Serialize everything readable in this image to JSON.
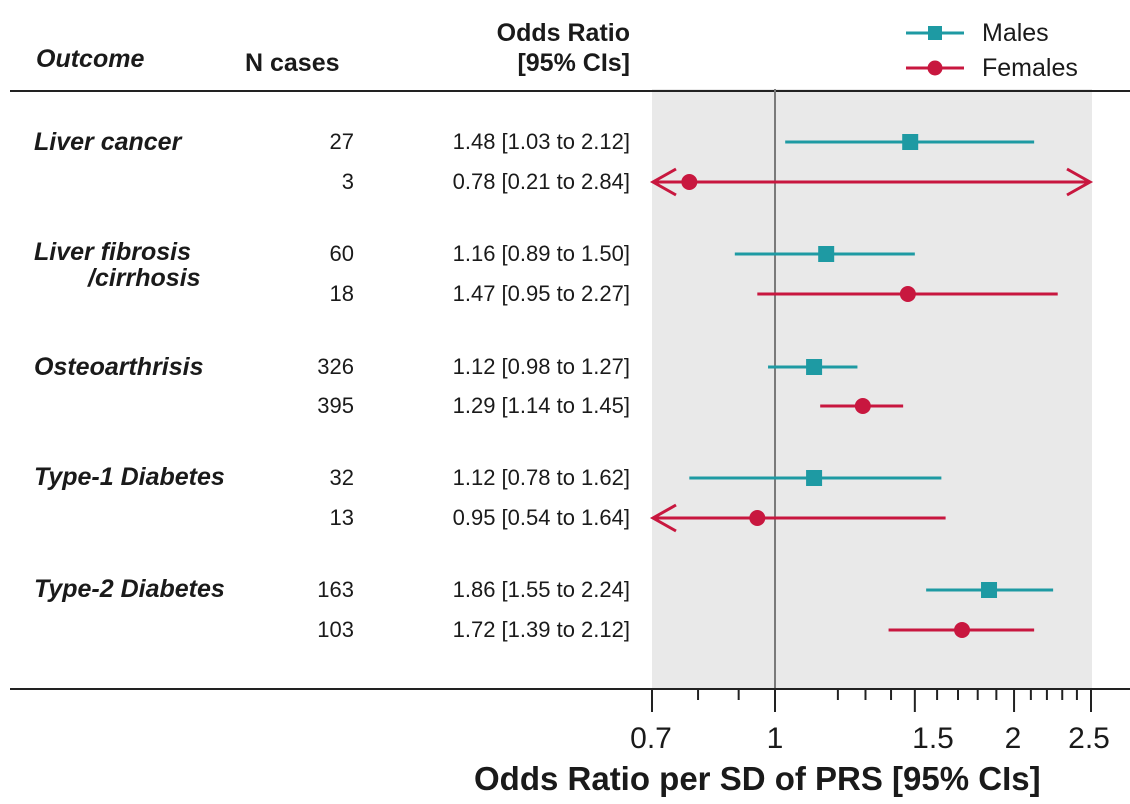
{
  "chart_data": {
    "type": "forest",
    "xlabel": "Odds Ratio per SD of PRS [95% CIs]",
    "x_scale": "log",
    "xlim": [
      0.7,
      2.5
    ],
    "x_ticks": [
      0.7,
      1,
      1.5,
      2,
      2.5
    ],
    "x_tick_labels": [
      "0.7",
      "1",
      "1.5",
      "2",
      "2.5"
    ],
    "reference_line": 1,
    "columns": {
      "outcome": "Outcome",
      "n_cases": "N cases",
      "or_line1": "Odds Ratio",
      "or_line2": "[95% CIs]"
    },
    "legend": [
      {
        "name": "Males",
        "color": "#1e9aa3",
        "marker": "square"
      },
      {
        "name": "Females",
        "color": "#c8173f",
        "marker": "circle"
      }
    ],
    "outcomes": [
      {
        "label": [
          "Liver cancer"
        ],
        "rows": [
          {
            "sex": "Males",
            "n": "27",
            "text": "1.48 [1.03 to 2.12]",
            "or": 1.48,
            "lo": 1.03,
            "hi": 2.12
          },
          {
            "sex": "Females",
            "n": "3",
            "text": "0.78 [0.21 to 2.84]",
            "or": 0.78,
            "lo": 0.21,
            "hi": 2.84
          }
        ]
      },
      {
        "label": [
          "Liver fibrosis",
          "/cirrhosis"
        ],
        "rows": [
          {
            "sex": "Males",
            "n": "60",
            "text": "1.16 [0.89 to 1.50]",
            "or": 1.16,
            "lo": 0.89,
            "hi": 1.5
          },
          {
            "sex": "Females",
            "n": "18",
            "text": "1.47 [0.95 to 2.27]",
            "or": 1.47,
            "lo": 0.95,
            "hi": 2.27
          }
        ]
      },
      {
        "label": [
          "Osteoarthrisis"
        ],
        "rows": [
          {
            "sex": "Males",
            "n": "326",
            "text": "1.12 [0.98 to 1.27]",
            "or": 1.12,
            "lo": 0.98,
            "hi": 1.27
          },
          {
            "sex": "Females",
            "n": "395",
            "text": "1.29 [1.14 to 1.45]",
            "or": 1.29,
            "lo": 1.14,
            "hi": 1.45
          }
        ]
      },
      {
        "label": [
          "Type-1 Diabetes"
        ],
        "rows": [
          {
            "sex": "Males",
            "n": "32",
            "text": "1.12 [0.78 to 1.62]",
            "or": 1.12,
            "lo": 0.78,
            "hi": 1.62
          },
          {
            "sex": "Females",
            "n": "13",
            "text": "0.95 [0.54 to 1.64]",
            "or": 0.95,
            "lo": 0.54,
            "hi": 1.64
          }
        ]
      },
      {
        "label": [
          "Type-2 Diabetes"
        ],
        "rows": [
          {
            "sex": "Males",
            "n": "163",
            "text": "1.86 [1.55 to 2.24]",
            "or": 1.86,
            "lo": 1.55,
            "hi": 2.24
          },
          {
            "sex": "Females",
            "n": "103",
            "text": "1.72 [1.39 to 2.12]",
            "or": 1.72,
            "lo": 1.39,
            "hi": 2.12
          }
        ]
      }
    ]
  }
}
